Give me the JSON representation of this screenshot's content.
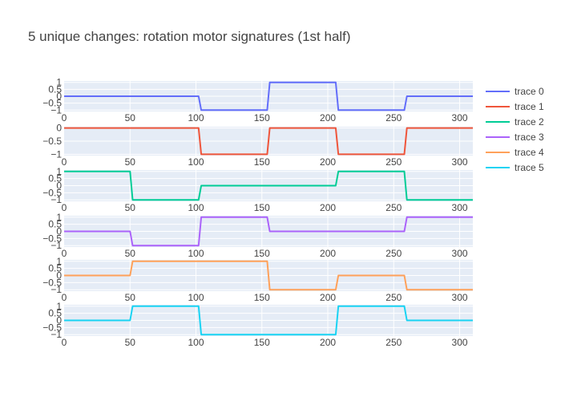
{
  "chart_data": {
    "type": "line",
    "title": "5 unique changes: rotation motor signatures (1st half)",
    "background": "#ffffff",
    "plot_background": "#e5ecf6",
    "grid": true,
    "grid_color": "#ffffff",
    "legend_position": "right",
    "subplots": [
      {
        "x_ticks": [
          0,
          50,
          100,
          150,
          200,
          250,
          300
        ],
        "xlim": [
          0,
          310
        ],
        "y_ticks": [
          {
            "value": 1,
            "label": "1"
          },
          {
            "value": 0.5,
            "label": "0.5"
          },
          {
            "value": 0,
            "label": "0"
          },
          {
            "value": -0.5,
            "label": "−0.5"
          },
          {
            "value": -1,
            "label": "−1"
          }
        ],
        "ylim": [
          -1.1,
          1.1
        ]
      },
      {
        "x_ticks": [
          0,
          50,
          100,
          150,
          200,
          250,
          300
        ],
        "xlim": [
          0,
          310
        ],
        "y_ticks": [
          {
            "value": 0,
            "label": "0"
          },
          {
            "value": -0.5,
            "label": "−0.5"
          },
          {
            "value": -1,
            "label": "−1"
          }
        ],
        "ylim": [
          -1.05,
          0.05
        ]
      },
      {
        "x_ticks": [
          0,
          50,
          100,
          150,
          200,
          250,
          300
        ],
        "xlim": [
          0,
          310
        ],
        "y_ticks": [
          {
            "value": 1,
            "label": "1"
          },
          {
            "value": 0.5,
            "label": "0.5"
          },
          {
            "value": 0,
            "label": "0"
          },
          {
            "value": -0.5,
            "label": "−0.5"
          },
          {
            "value": -1,
            "label": "−1"
          }
        ],
        "ylim": [
          -1.1,
          1.1
        ]
      },
      {
        "x_ticks": [
          0,
          50,
          100,
          150,
          200,
          250,
          300
        ],
        "xlim": [
          0,
          310
        ],
        "y_ticks": [
          {
            "value": 1,
            "label": "1"
          },
          {
            "value": 0.5,
            "label": "0.5"
          },
          {
            "value": 0,
            "label": "0"
          },
          {
            "value": -0.5,
            "label": "−0.5"
          },
          {
            "value": -1,
            "label": "−1"
          }
        ],
        "ylim": [
          -1.1,
          1.1
        ]
      },
      {
        "x_ticks": [
          0,
          50,
          100,
          150,
          200,
          250,
          300
        ],
        "xlim": [
          0,
          310
        ],
        "y_ticks": [
          {
            "value": 1,
            "label": "1"
          },
          {
            "value": 0.5,
            "label": "0.5"
          },
          {
            "value": 0,
            "label": "0"
          },
          {
            "value": -0.5,
            "label": "−0.5"
          },
          {
            "value": -1,
            "label": "−1"
          }
        ],
        "ylim": [
          -1.1,
          1.1
        ]
      },
      {
        "x_ticks": [
          0,
          50,
          100,
          150,
          200,
          250,
          300
        ],
        "xlim": [
          0,
          310
        ],
        "y_ticks": [
          {
            "value": 1,
            "label": "1"
          },
          {
            "value": 0.5,
            "label": "0.5"
          },
          {
            "value": 0,
            "label": "0"
          },
          {
            "value": -0.5,
            "label": "−0.5"
          },
          {
            "value": -1,
            "label": "−1"
          }
        ],
        "ylim": [
          -1.1,
          1.1
        ]
      }
    ],
    "series": [
      {
        "name": "trace 0",
        "color": "#636efa",
        "subplot": 0,
        "x": [
          0,
          102,
          104,
          154,
          156,
          206,
          208,
          258,
          260,
          310
        ],
        "y": [
          0,
          0,
          -1,
          -1,
          1,
          1,
          -1,
          -1,
          0,
          0
        ]
      },
      {
        "name": "trace 1",
        "color": "#ef553b",
        "subplot": 1,
        "x": [
          0,
          102,
          104,
          154,
          156,
          206,
          208,
          258,
          260,
          310
        ],
        "y": [
          0,
          0,
          -1,
          -1,
          0,
          0,
          -1,
          -1,
          0,
          0
        ]
      },
      {
        "name": "trace 2",
        "color": "#00cc96",
        "subplot": 2,
        "x": [
          0,
          50,
          52,
          102,
          104,
          206,
          208,
          258,
          260,
          310
        ],
        "y": [
          1,
          1,
          -1,
          -1,
          0,
          0,
          1,
          1,
          -1,
          -1
        ]
      },
      {
        "name": "trace 3",
        "color": "#ab63fa",
        "subplot": 3,
        "x": [
          0,
          50,
          52,
          102,
          104,
          154,
          156,
          258,
          260,
          310
        ],
        "y": [
          0,
          0,
          -1,
          -1,
          1,
          1,
          0,
          0,
          1,
          1
        ]
      },
      {
        "name": "trace 4",
        "color": "#ffa15a",
        "subplot": 4,
        "x": [
          0,
          50,
          52,
          154,
          156,
          206,
          208,
          258,
          260,
          310
        ],
        "y": [
          0,
          0,
          1,
          1,
          -1,
          -1,
          0,
          0,
          -1,
          -1
        ]
      },
      {
        "name": "trace 5",
        "color": "#19d3f3",
        "subplot": 5,
        "x": [
          0,
          50,
          52,
          102,
          104,
          206,
          208,
          258,
          260,
          310
        ],
        "y": [
          0,
          0,
          1,
          1,
          -1,
          -1,
          1,
          1,
          0,
          0
        ]
      }
    ]
  }
}
